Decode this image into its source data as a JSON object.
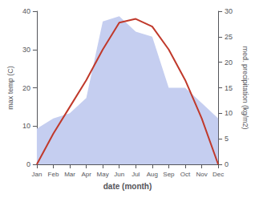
{
  "chart_data": {
    "type": "line",
    "xlabel": "date (month)",
    "ylabel": "max temp (C)",
    "y2label": "med. precipitation (kg/m2)",
    "categories": [
      "Jan",
      "Feb",
      "Mar",
      "Apr",
      "May",
      "Jun",
      "Jul",
      "Aug",
      "Sep",
      "Oct",
      "Nov",
      "Dec"
    ],
    "series": [
      {
        "type": "area",
        "color": "#c5cef0",
        "axis": "y2",
        "values": [
          7,
          9,
          10,
          13,
          28,
          29,
          26,
          25,
          15,
          15,
          12,
          9
        ]
      },
      {
        "type": "line",
        "color": "#c0392b",
        "values": [
          0,
          8,
          15,
          22,
          30,
          37,
          38,
          36,
          30,
          22,
          12,
          0
        ]
      }
    ],
    "ylim": [
      0,
      40
    ],
    "yticks": [
      0,
      10,
      20,
      30,
      40
    ],
    "y2lim": [
      0,
      30
    ],
    "y2ticks": [
      0,
      5,
      10,
      15,
      20,
      25,
      30
    ],
    "grid": false
  }
}
